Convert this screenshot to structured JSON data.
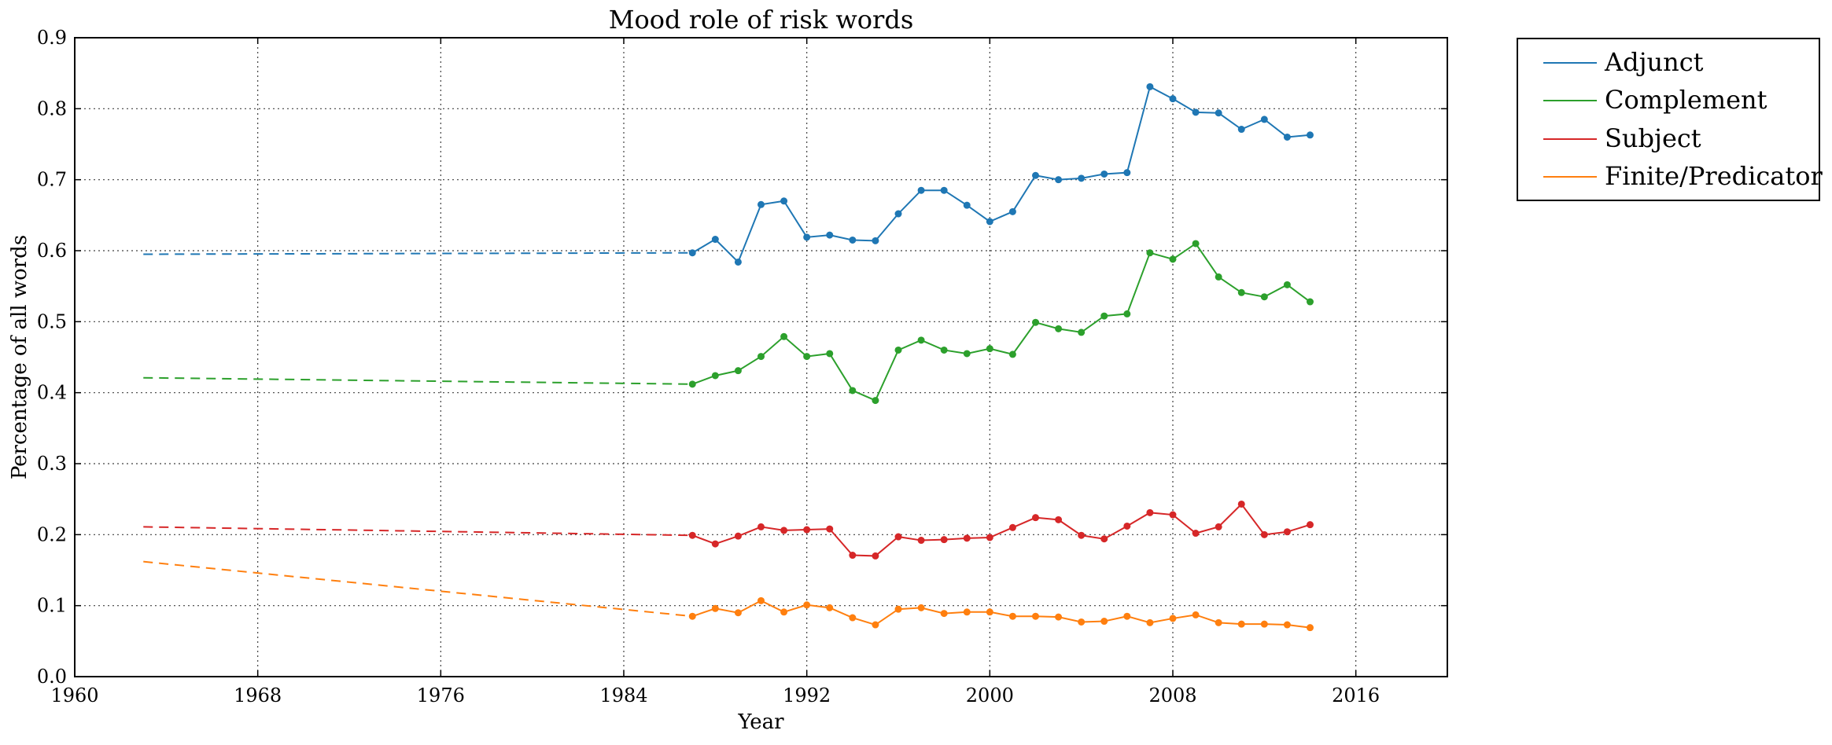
{
  "chart_data": {
    "type": "line",
    "title": "Mood role of risk words",
    "xlabel": "Year",
    "ylabel": "Percentage of all words",
    "xlim": [
      1960,
      2020
    ],
    "ylim": [
      0.0,
      0.9
    ],
    "xticks": [
      1960,
      1968,
      1976,
      1984,
      1992,
      2000,
      2008,
      2016
    ],
    "yticks": [
      0.0,
      0.1,
      0.2,
      0.3,
      0.4,
      0.5,
      0.6,
      0.7,
      0.8,
      0.9
    ],
    "xtick_labels": [
      "1960",
      "1968",
      "1976",
      "1984",
      "1992",
      "2000",
      "2008",
      "2016"
    ],
    "ytick_labels": [
      "0.0",
      "0.1",
      "0.2",
      "0.3",
      "0.4",
      "0.5",
      "0.6",
      "0.7",
      "0.8",
      "0.9"
    ],
    "grid": true,
    "legend_position": "outside-top-right",
    "x": [
      1987,
      1988,
      1989,
      1990,
      1991,
      1992,
      1993,
      1994,
      1995,
      1996,
      1997,
      1998,
      1999,
      2000,
      2001,
      2002,
      2003,
      2004,
      2005,
      2006,
      2007,
      2008,
      2009,
      2010,
      2011,
      2012,
      2013,
      2014
    ],
    "series": [
      {
        "name": "Adjunct",
        "color": "#1f77b4",
        "values": [
          0.597,
          0.616,
          0.584,
          0.665,
          0.67,
          0.619,
          0.622,
          0.615,
          0.614,
          0.652,
          0.685,
          0.685,
          0.664,
          0.641,
          0.655,
          0.706,
          0.7,
          0.702,
          0.708,
          0.71,
          0.831,
          0.814,
          0.795,
          0.794,
          0.771,
          0.785,
          0.76,
          0.763
        ],
        "extrapolation": {
          "x": [
            1963,
            1987
          ],
          "y": [
            0.595,
            0.597
          ]
        }
      },
      {
        "name": "Complement",
        "color": "#2ca02c",
        "values": [
          0.412,
          0.424,
          0.431,
          0.451,
          0.479,
          0.451,
          0.455,
          0.403,
          0.389,
          0.46,
          0.474,
          0.46,
          0.455,
          0.462,
          0.454,
          0.499,
          0.49,
          0.485,
          0.508,
          0.511,
          0.597,
          0.588,
          0.61,
          0.563,
          0.541,
          0.535,
          0.552,
          0.528
        ],
        "extrapolation": {
          "x": [
            1963,
            1987
          ],
          "y": [
            0.421,
            0.412
          ]
        }
      },
      {
        "name": "Subject",
        "color": "#d62728",
        "values": [
          0.199,
          0.187,
          0.198,
          0.211,
          0.206,
          0.207,
          0.208,
          0.171,
          0.17,
          0.197,
          0.192,
          0.193,
          0.195,
          0.196,
          0.21,
          0.224,
          0.221,
          0.199,
          0.194,
          0.212,
          0.231,
          0.228,
          0.202,
          0.211,
          0.243,
          0.2,
          0.204,
          0.214
        ],
        "extrapolation": {
          "x": [
            1963,
            1987
          ],
          "y": [
            0.211,
            0.199
          ]
        }
      },
      {
        "name": "Finite/Predicator",
        "color": "#ff7f0e",
        "values": [
          0.085,
          0.096,
          0.09,
          0.107,
          0.091,
          0.101,
          0.097,
          0.083,
          0.073,
          0.095,
          0.097,
          0.089,
          0.091,
          0.091,
          0.085,
          0.085,
          0.084,
          0.077,
          0.078,
          0.085,
          0.076,
          0.082,
          0.087,
          0.076,
          0.074,
          0.074,
          0.073,
          0.069
        ],
        "extrapolation": {
          "x": [
            1963,
            1987
          ],
          "y": [
            0.162,
            0.085
          ]
        }
      }
    ]
  }
}
